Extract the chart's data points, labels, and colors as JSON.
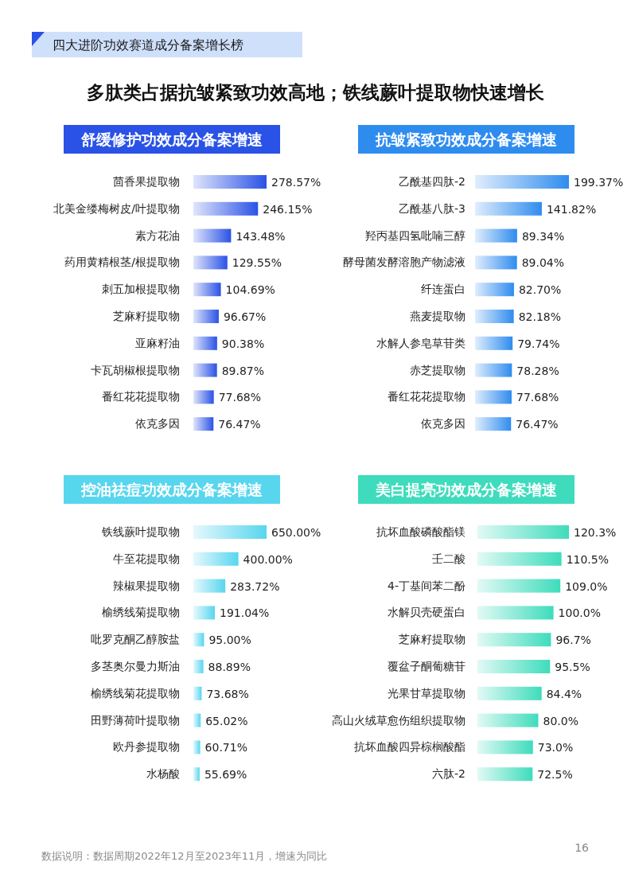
{
  "chart_data": [
    {
      "type": "other",
      "title": "四大进阶功效赛道成分备案增长榜",
      "subtitle": "多肽类占据抗皱紧致功效高地；铁线蕨叶提取物快速增长",
      "annotations": [
        "数据说明：数据周期2022年12月至2023年11月，增速为同比",
        "16"
      ]
    },
    {
      "type": "bar",
      "orientation": "horizontal",
      "title": "舒缓修护功效成分备案增速",
      "color": "#2a52e6",
      "data_labels": true,
      "categories": [
        "茴香果提取物",
        "北美金缕梅树皮/叶提取物",
        "素方花油",
        "药用黄精根茎/根提取物",
        "刺五加根提取物",
        "芝麻籽提取物",
        "亚麻籽油",
        "卡瓦胡椒根提取物",
        "番红花花提取物",
        "依克多因"
      ],
      "values": [
        278.57,
        246.15,
        143.48,
        129.55,
        104.69,
        96.67,
        90.38,
        89.87,
        77.68,
        76.47
      ],
      "value_labels": [
        "278.57%",
        "246.15%",
        "143.48%",
        "129.55%",
        "104.69%",
        "96.67%",
        "90.38%",
        "89.87%",
        "77.68%",
        "76.47%"
      ]
    },
    {
      "type": "bar",
      "orientation": "horizontal",
      "title": "抗皱紧致功效成分备案增速",
      "color": "#2f8cef",
      "data_labels": true,
      "categories": [
        "乙酰基四肽-2",
        "乙酰基八肽-3",
        "羟丙基四氢吡喃三醇",
        "酵母菌发酵溶胞产物滤液",
        "纤连蛋白",
        "燕麦提取物",
        "水解人参皂草苷类",
        "赤芝提取物",
        "番红花花提取物",
        "依克多因"
      ],
      "values": [
        199.37,
        141.82,
        89.34,
        89.04,
        82.7,
        82.18,
        79.74,
        78.28,
        77.68,
        76.47
      ],
      "value_labels": [
        "199.37%",
        "141.82%",
        "89.34%",
        "89.04%",
        "82.70%",
        "82.18%",
        "79.74%",
        "78.28%",
        "77.68%",
        "76.47%"
      ]
    },
    {
      "type": "bar",
      "orientation": "horizontal",
      "title": "控油祛痘功效成分备案增速",
      "color": "#57d6ee",
      "data_labels": true,
      "categories": [
        "铁线蕨叶提取物",
        "牛至花提取物",
        "辣椒果提取物",
        "榆绣线菊提取物",
        "吡罗克酮乙醇胺盐",
        "多茎奥尔曼力斯油",
        "榆绣线菊花提取物",
        "田野薄荷叶提取物",
        "欧丹参提取物",
        "水杨酸"
      ],
      "values": [
        650.0,
        400.0,
        283.72,
        191.04,
        95.0,
        88.89,
        73.68,
        65.02,
        60.71,
        55.69
      ],
      "value_labels": [
        "650.00%",
        "400.00%",
        "283.72%",
        "191.04%",
        "95.00%",
        "88.89%",
        "73.68%",
        "65.02%",
        "60.71%",
        "55.69%"
      ]
    },
    {
      "type": "bar",
      "orientation": "horizontal",
      "title": "美白提亮功效成分备案增速",
      "color": "#3edcbc",
      "data_labels": true,
      "categories": [
        "抗坏血酸磷酸酯镁",
        "壬二酸",
        "4-丁基间苯二酚",
        "水解贝壳硬蛋白",
        "芝麻籽提取物",
        "覆盆子酮葡糖苷",
        "光果甘草提取物",
        "高山火绒草愈伤组织提取物",
        "抗坏血酸四异棕榈酸酯",
        "六肽-2"
      ],
      "values": [
        120.3,
        110.5,
        109.0,
        100.0,
        96.7,
        95.5,
        84.4,
        80.0,
        73.0,
        72.5
      ],
      "value_labels": [
        "120.3%",
        "110.5%",
        "109.0%",
        "100.0%",
        "96.7%",
        "95.5%",
        "84.4%",
        "80.0%",
        "73.0%",
        "72.5%"
      ]
    }
  ]
}
